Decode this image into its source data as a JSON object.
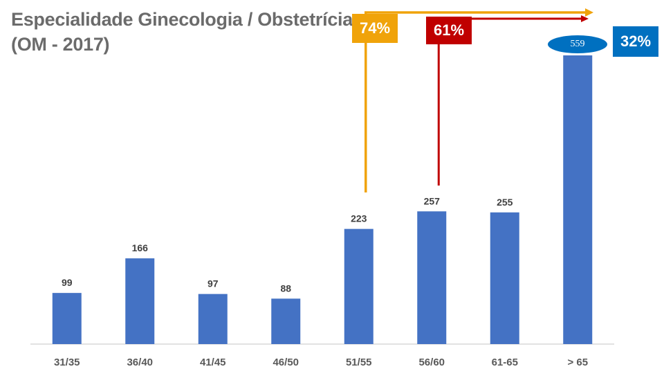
{
  "title": {
    "line1": "Especialidade Ginecologia / Obstetrícia",
    "line2": "(OM - 2017)"
  },
  "chart_data": {
    "type": "bar",
    "title": "Especialidade Ginecologia / Obstetrícia (OM - 2017)",
    "categories": [
      "31/35",
      "36/40",
      "41/45",
      "46/50",
      "51/55",
      "56/60",
      "61-65",
      "> 65"
    ],
    "values": [
      99,
      166,
      97,
      88,
      223,
      257,
      255,
      559
    ],
    "ylim": [
      0,
      559
    ],
    "xlabel": "",
    "ylabel": "",
    "color": "#4472c4",
    "annotations": [
      {
        "label": "74%",
        "from_category": "51/55",
        "color": "#f0a30a"
      },
      {
        "label": "61%",
        "from_category": "56/60",
        "color": "#c00000"
      },
      {
        "label": "32%",
        "category": "> 65",
        "color": "#0070c0"
      }
    ]
  }
}
